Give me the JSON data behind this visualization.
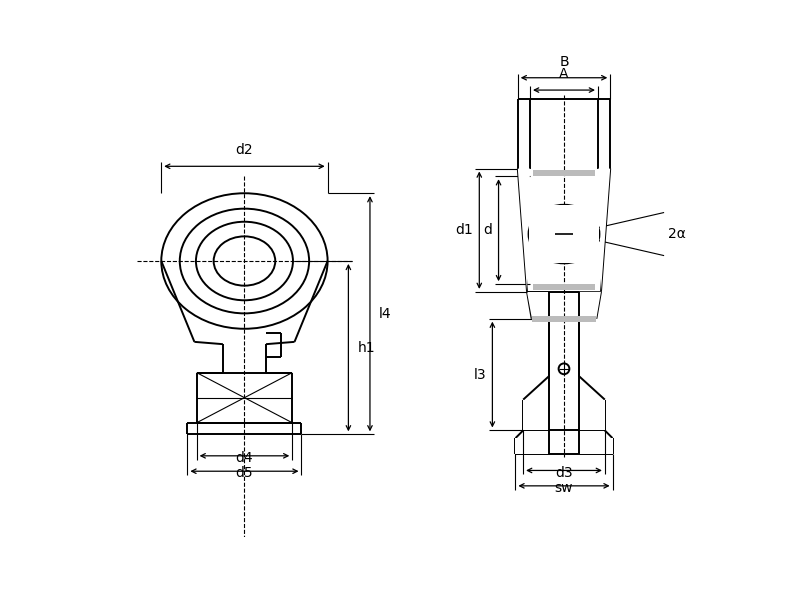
{
  "background_color": "#ffffff",
  "line_color": "#000000",
  "fig_width": 8.0,
  "fig_height": 6.03,
  "dpi": 100,
  "labels": {
    "d2": "d2",
    "d4": "d4",
    "d5": "d5",
    "h1": "h1",
    "l4": "l4",
    "B": "B",
    "A": "A",
    "d1": "d1",
    "d": "d",
    "l3": "l3",
    "d3": "d3",
    "sw": "sw",
    "two_alpha": "2α"
  }
}
